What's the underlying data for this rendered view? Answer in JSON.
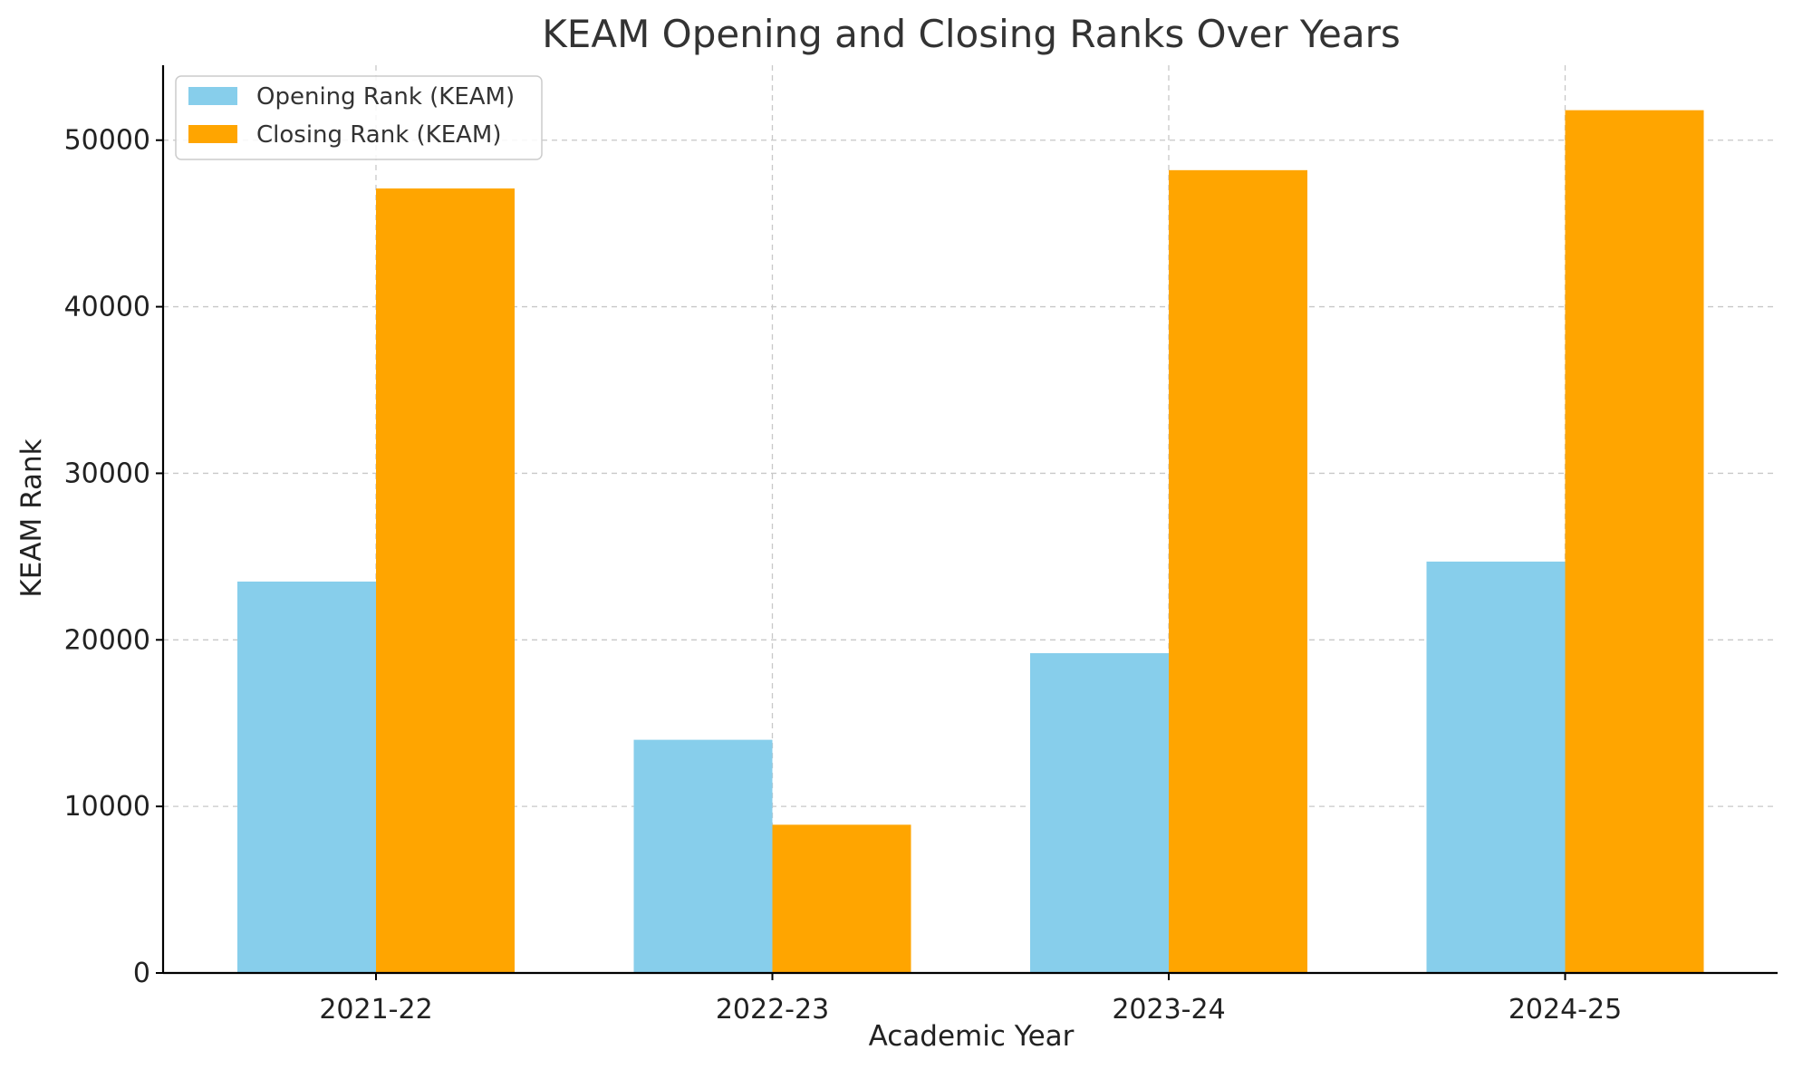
{
  "chart_data": {
    "type": "bar",
    "title": "KEAM Opening and Closing Ranks Over Years",
    "xlabel": "Academic Year",
    "ylabel": "KEAM Rank",
    "categories": [
      "2021-22",
      "2022-23",
      "2023-24",
      "2024-25"
    ],
    "series": [
      {
        "name": "Opening Rank (KEAM)",
        "color": "#87CEEB",
        "values": [
          23500,
          14000,
          19200,
          24700
        ]
      },
      {
        "name": "Closing Rank (KEAM)",
        "color": "#FFA500",
        "values": [
          47100,
          8900,
          48200,
          51800
        ]
      }
    ],
    "ylim": [
      0,
      54500
    ],
    "yticks": [
      0,
      10000,
      20000,
      30000,
      40000,
      50000
    ],
    "grid": true,
    "legend_position": "top-left"
  }
}
